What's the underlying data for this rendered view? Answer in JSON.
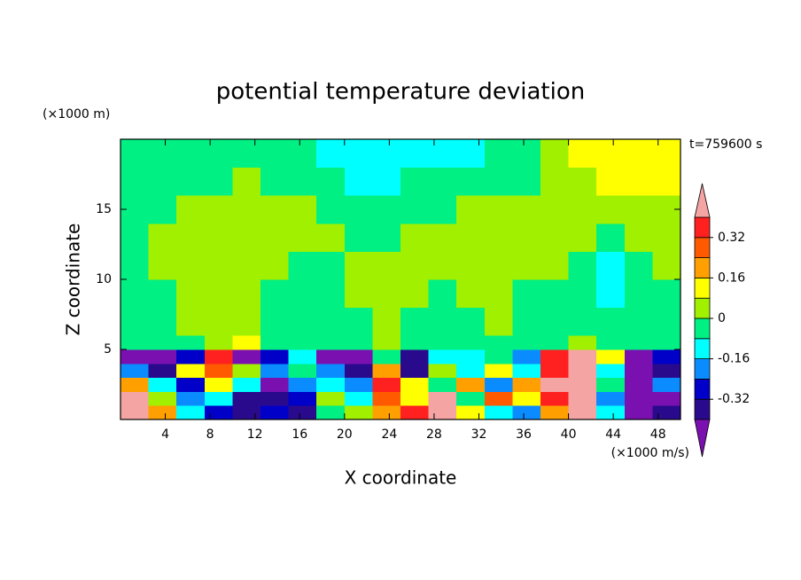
{
  "chart_data": {
    "type": "contour",
    "title": "potential temperature deviation",
    "y_unit": "(×1000 m)",
    "x_unit": "(×1000 m/s)",
    "time_label": "t=759600 s",
    "xlabel": "X coordinate",
    "ylabel": "Z coordinate",
    "xlim": [
      0,
      50
    ],
    "ylim": [
      0,
      20
    ],
    "xticks": [
      4,
      8,
      12,
      16,
      20,
      24,
      28,
      32,
      36,
      40,
      44,
      48
    ],
    "yticks": [
      5,
      10,
      15
    ],
    "x_edges": [
      0,
      2.5,
      5,
      7.5,
      10,
      12.5,
      15,
      17.5,
      20,
      22.5,
      25,
      27.5,
      30,
      32.5,
      35,
      37.5,
      40,
      42.5,
      45,
      47.5,
      50
    ],
    "y_edges": [
      0,
      1,
      2,
      3,
      4,
      5,
      6,
      8,
      10,
      12,
      14,
      16,
      18,
      20
    ],
    "levels": [
      -0.4,
      -0.32,
      -0.24,
      -0.16,
      -0.08,
      0,
      0.08,
      0.16,
      0.24,
      0.32,
      0.4
    ],
    "colors": [
      "#7a10b0",
      "#2a0a8c",
      "#0000c8",
      "#0a8cff",
      "#00ffff",
      "#00f084",
      "#a0f000",
      "#ffff00",
      "#ffa000",
      "#ff5a00",
      "#ff2020",
      "#f5a4a4"
    ],
    "colorbar_ticks": [
      -0.32,
      -0.16,
      0,
      0.16,
      0.32
    ],
    "values": [
      [
        0.44,
        0.2,
        -0.12,
        -0.28,
        -0.36,
        -0.28,
        -0.36,
        -0.04,
        0.04,
        0.2,
        0.36,
        0.44,
        0.12,
        -0.12,
        -0.2,
        0.2,
        0.44,
        -0.12,
        -0.44,
        -0.36
      ],
      [
        0.44,
        0.04,
        -0.2,
        -0.12,
        -0.36,
        -0.36,
        -0.28,
        0.04,
        -0.12,
        0.28,
        0.12,
        0.44,
        -0.04,
        0.28,
        0.12,
        0.36,
        0.44,
        -0.2,
        -0.44,
        -0.44
      ],
      [
        0.2,
        -0.12,
        -0.28,
        0.12,
        -0.12,
        -0.44,
        -0.2,
        -0.12,
        -0.2,
        0.36,
        0.12,
        -0.04,
        0.2,
        -0.2,
        0.2,
        0.44,
        0.44,
        -0.04,
        -0.44,
        -0.2
      ],
      [
        -0.2,
        -0.36,
        0.12,
        0.28,
        0.04,
        -0.2,
        -0.04,
        -0.2,
        -0.36,
        0.2,
        -0.36,
        0.04,
        -0.12,
        0.12,
        -0.12,
        0.36,
        0.44,
        -0.12,
        -0.44,
        -0.36
      ],
      [
        -0.44,
        -0.44,
        -0.28,
        0.36,
        -0.44,
        -0.28,
        -0.12,
        -0.44,
        -0.44,
        -0.04,
        -0.36,
        -0.12,
        -0.12,
        -0.04,
        -0.2,
        0.36,
        0.44,
        0.12,
        -0.44,
        -0.28
      ],
      [
        -0.04,
        -0.04,
        -0.04,
        0.04,
        0.12,
        -0.04,
        -0.04,
        -0.04,
        -0.04,
        0.04,
        -0.04,
        -0.04,
        -0.04,
        -0.04,
        -0.04,
        -0.04,
        0.04,
        -0.04,
        -0.04,
        -0.04
      ],
      [
        -0.04,
        -0.04,
        0.04,
        0.04,
        0.04,
        -0.04,
        -0.04,
        -0.04,
        -0.04,
        0.04,
        -0.04,
        -0.04,
        -0.04,
        0.04,
        -0.04,
        -0.04,
        -0.04,
        -0.04,
        -0.04,
        -0.04
      ],
      [
        -0.04,
        -0.04,
        0.04,
        0.04,
        0.04,
        -0.04,
        -0.04,
        -0.04,
        0.04,
        0.04,
        0.04,
        -0.04,
        0.04,
        0.04,
        -0.04,
        -0.04,
        -0.04,
        -0.12,
        -0.04,
        -0.04
      ],
      [
        -0.04,
        0.04,
        0.04,
        0.04,
        0.04,
        0.04,
        -0.04,
        -0.04,
        0.04,
        0.04,
        0.04,
        0.04,
        0.04,
        0.04,
        0.04,
        0.04,
        -0.04,
        -0.12,
        -0.04,
        0.04
      ],
      [
        -0.04,
        0.04,
        0.04,
        0.04,
        0.04,
        0.04,
        0.04,
        0.04,
        -0.04,
        -0.04,
        0.04,
        0.04,
        0.04,
        0.04,
        0.04,
        0.04,
        0.04,
        -0.04,
        0.04,
        0.04
      ],
      [
        -0.04,
        -0.04,
        0.04,
        0.04,
        0.04,
        0.04,
        0.04,
        -0.04,
        -0.04,
        -0.04,
        -0.04,
        -0.04,
        0.04,
        0.04,
        0.04,
        0.04,
        0.04,
        0.04,
        0.04,
        0.04
      ],
      [
        -0.04,
        -0.04,
        -0.04,
        -0.04,
        0.04,
        -0.04,
        -0.04,
        -0.04,
        -0.12,
        -0.12,
        -0.04,
        -0.04,
        -0.04,
        -0.04,
        -0.04,
        0.04,
        0.04,
        0.12,
        0.12,
        0.12
      ],
      [
        -0.04,
        -0.04,
        -0.04,
        -0.04,
        -0.04,
        -0.04,
        -0.04,
        -0.12,
        -0.12,
        -0.12,
        -0.12,
        -0.12,
        -0.12,
        -0.04,
        -0.04,
        0.04,
        0.12,
        0.12,
        0.12,
        0.12
      ]
    ]
  }
}
